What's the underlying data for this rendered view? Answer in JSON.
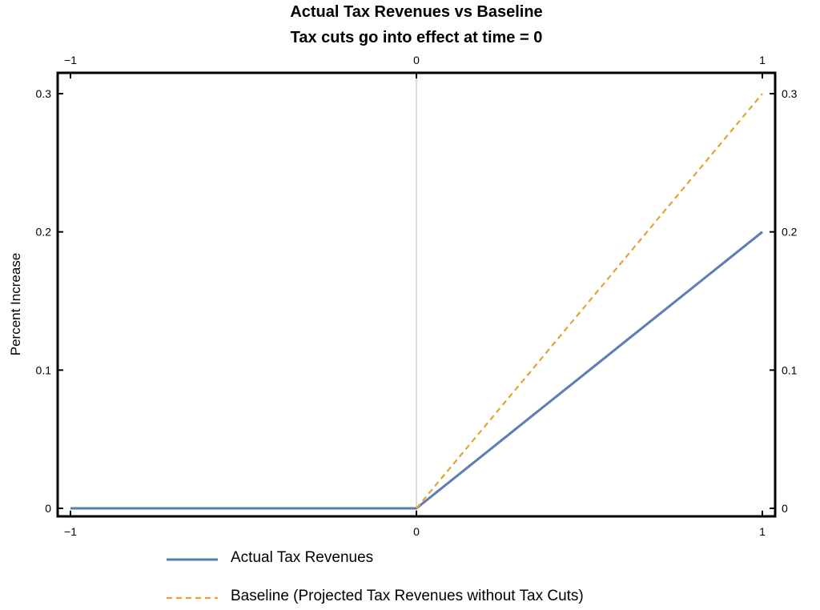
{
  "chart_data": {
    "type": "line",
    "title": "Actual Tax Revenues vs Baseline",
    "subtitle": "Tax cuts go into effect at time = 0",
    "xlabel": "",
    "ylabel": "Percent Increase",
    "xlim": [
      -1,
      1
    ],
    "ylim": [
      0,
      0.3
    ],
    "x_ticks": [
      -1,
      0,
      1
    ],
    "y_ticks": [
      0,
      0.1,
      0.2,
      0.3
    ],
    "x_tick_labels": [
      "−1",
      "0",
      "1"
    ],
    "y_tick_labels": [
      "0",
      "0.1",
      "0.2",
      "0.3"
    ],
    "grid": false,
    "legend_position": "bottom",
    "series": [
      {
        "name": "Actual Tax Revenues",
        "color": "#5b7db5",
        "style": "solid",
        "points": [
          [
            -1,
            0
          ],
          [
            0,
            0
          ],
          [
            1,
            0.2
          ]
        ]
      },
      {
        "name": "Baseline (Projected Tax Revenues without Tax Cuts)",
        "color": "#e4a233",
        "style": "dashed",
        "points": [
          [
            0,
            0
          ],
          [
            1,
            0.3
          ]
        ]
      }
    ]
  }
}
